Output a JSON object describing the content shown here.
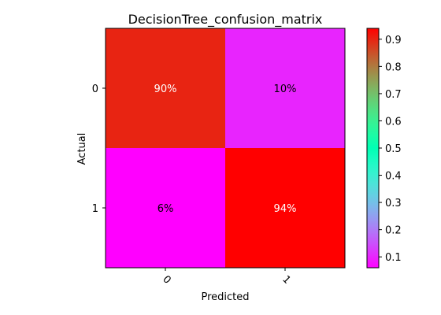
{
  "chart_data": {
    "type": "heatmap",
    "title": "DecisionTree_confusion_matrix",
    "xlabel": "Predicted",
    "ylabel": "Actual",
    "x_categories": [
      "0",
      "1"
    ],
    "y_categories": [
      "0",
      "1"
    ],
    "values": [
      [
        0.9,
        0.1
      ],
      [
        0.06,
        0.94
      ]
    ],
    "cell_labels": [
      [
        "90%",
        "10%"
      ],
      [
        "6%",
        "94%"
      ]
    ],
    "colormap": "rainbow",
    "color_range": [
      0.06,
      0.94
    ],
    "colorbar_ticks": [
      "0.1",
      "0.2",
      "0.3",
      "0.4",
      "0.5",
      "0.6",
      "0.7",
      "0.8",
      "0.9"
    ],
    "colorbar_tick_values": [
      0.1,
      0.2,
      0.3,
      0.4,
      0.5,
      0.6,
      0.7,
      0.8,
      0.9
    ],
    "grid": false
  }
}
